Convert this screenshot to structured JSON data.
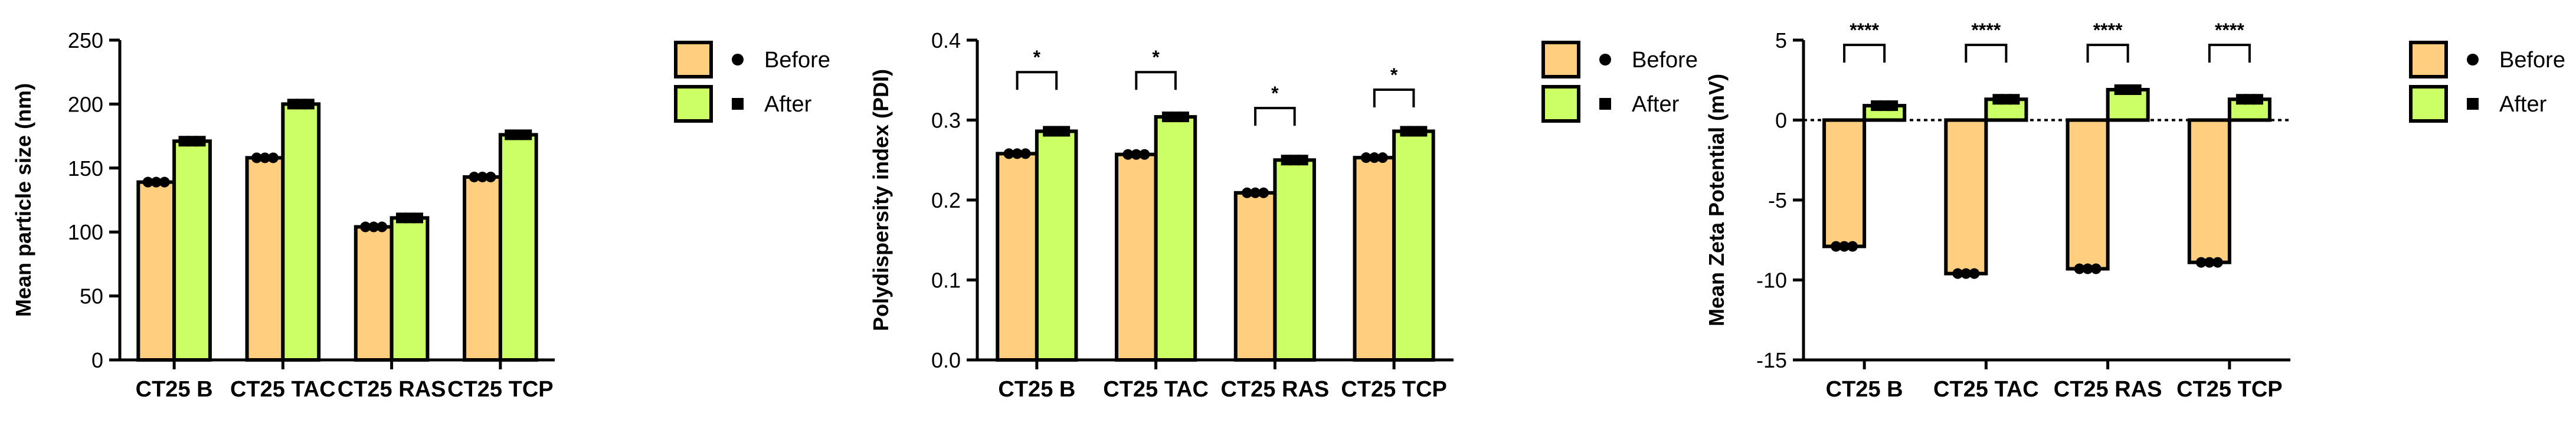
{
  "colors": {
    "before": "#FFCF7F",
    "after": "#CCFF66",
    "stroke": "#000000"
  },
  "chart_data": [
    {
      "type": "bar",
      "title": "",
      "xlabel": "",
      "ylabel": "Mean particle size (nm)",
      "categories": [
        "CT25 B",
        "CT25 TAC",
        "CT25 RAS",
        "CT25 TCP"
      ],
      "ylim": [
        0,
        250
      ],
      "yticks": [
        0,
        50,
        100,
        150,
        200,
        250
      ],
      "ytick_labels": [
        "0",
        "50",
        "100",
        "150",
        "200",
        "250"
      ],
      "grid": false,
      "legend": "right",
      "series": [
        {
          "name": "Before",
          "marker": "circle",
          "values": [
            139,
            158,
            104,
            143
          ]
        },
        {
          "name": "After",
          "marker": "square",
          "values": [
            171,
            200,
            111,
            176
          ]
        }
      ],
      "significance": []
    },
    {
      "type": "bar",
      "title": "",
      "xlabel": "",
      "ylabel": "Polydispersity index (PDI)",
      "categories": [
        "CT25 B",
        "CT25 TAC",
        "CT25 RAS",
        "CT25 TCP"
      ],
      "ylim": [
        0,
        0.4
      ],
      "yticks": [
        0,
        0.1,
        0.2,
        0.3,
        0.4
      ],
      "ytick_labels": [
        "0.0",
        "0.1",
        "0.2",
        "0.3",
        "0.4"
      ],
      "grid": false,
      "legend": "right",
      "series": [
        {
          "name": "Before",
          "marker": "circle",
          "values": [
            0.258,
            0.257,
            0.209,
            0.253
          ]
        },
        {
          "name": "After",
          "marker": "square",
          "values": [
            0.286,
            0.304,
            0.25,
            0.286
          ]
        }
      ],
      "significance": [
        {
          "category": "CT25 B",
          "label": "*",
          "y": 0.36
        },
        {
          "category": "CT25 TAC",
          "label": "*",
          "y": 0.36
        },
        {
          "category": "CT25 RAS",
          "label": "*",
          "y": 0.315
        },
        {
          "category": "CT25 TCP",
          "label": "*",
          "y": 0.338
        }
      ]
    },
    {
      "type": "bar",
      "title": "",
      "xlabel": "",
      "ylabel": "Mean Zeta Potential (mV)",
      "categories": [
        "CT25 B",
        "CT25 TAC",
        "CT25 RAS",
        "CT25 TCP"
      ],
      "ylim": [
        -15,
        5
      ],
      "yticks": [
        -15,
        -10,
        -5,
        0,
        5
      ],
      "ytick_labels": [
        "-15",
        "-10",
        "-5",
        "0",
        "5"
      ],
      "grid": false,
      "zero_line": "dotted",
      "legend": "right",
      "series": [
        {
          "name": "Before",
          "marker": "circle",
          "values": [
            -7.9,
            -9.6,
            -9.3,
            -8.9
          ]
        },
        {
          "name": "After",
          "marker": "square",
          "values": [
            0.9,
            1.3,
            1.9,
            1.3
          ]
        }
      ],
      "significance": [
        {
          "category": "CT25 B",
          "label": "****",
          "y": 4.7
        },
        {
          "category": "CT25 TAC",
          "label": "****",
          "y": 4.7
        },
        {
          "category": "CT25 RAS",
          "label": "****",
          "y": 4.7
        },
        {
          "category": "CT25 TCP",
          "label": "****",
          "y": 4.7
        }
      ]
    }
  ]
}
